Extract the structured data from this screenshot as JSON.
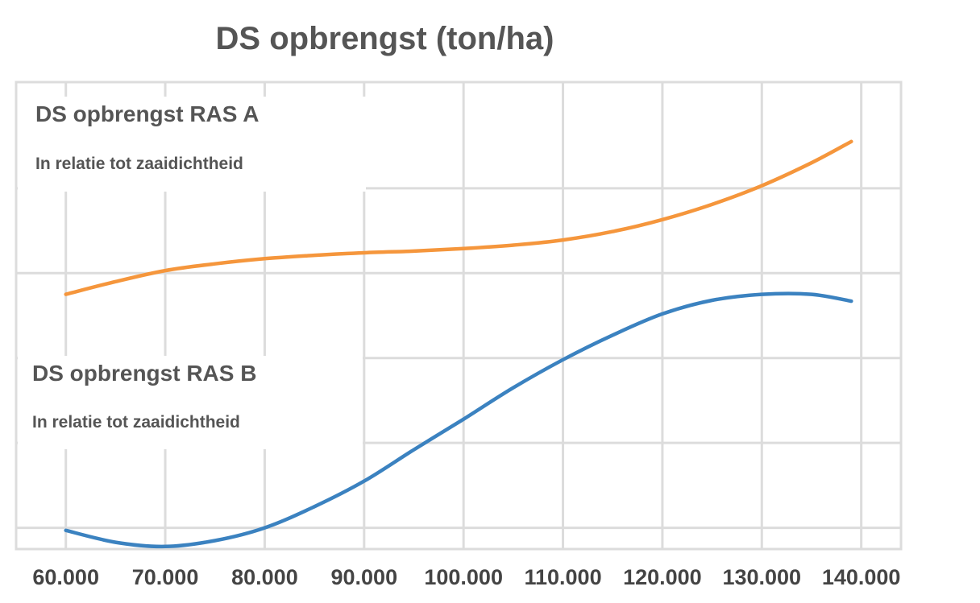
{
  "chart_data": {
    "type": "line",
    "title": "DS opbrengst (ton/ha)",
    "xlabel": "",
    "ylabel": "",
    "x_tick_labels": [
      "60.000",
      "70.000",
      "80.000",
      "90.000",
      "100.000",
      "110.000",
      "120.000",
      "130.000",
      "140.000"
    ],
    "xlim": [
      55000,
      144000
    ],
    "ylim": [
      0,
      5.5
    ],
    "y_ticks_labeled": false,
    "grid": true,
    "colors": {
      "A": "#f5963c",
      "B": "#3b82c0",
      "grid": "#dcdcdc"
    },
    "series": [
      {
        "name": "DS opbrengst RAS A",
        "subtitle": "In relatie tot zaaidichtheid",
        "x": [
          60000,
          65000,
          70000,
          75000,
          80000,
          85000,
          90000,
          95000,
          100000,
          105000,
          110000,
          115000,
          120000,
          125000,
          130000,
          135000,
          139000
        ],
        "y": [
          3.0,
          3.15,
          3.28,
          3.36,
          3.42,
          3.46,
          3.49,
          3.51,
          3.54,
          3.58,
          3.64,
          3.74,
          3.88,
          4.06,
          4.28,
          4.55,
          4.8
        ]
      },
      {
        "name": "DS opbrengst RAS B",
        "subtitle": "In relatie tot zaaidichtheid",
        "x": [
          60000,
          65000,
          70000,
          75000,
          80000,
          85000,
          90000,
          95000,
          100000,
          105000,
          110000,
          115000,
          120000,
          125000,
          130000,
          135000,
          139000
        ],
        "y": [
          0.22,
          0.08,
          0.03,
          0.1,
          0.25,
          0.5,
          0.8,
          1.17,
          1.53,
          1.9,
          2.23,
          2.52,
          2.77,
          2.93,
          3.0,
          3.0,
          2.92
        ]
      }
    ]
  }
}
